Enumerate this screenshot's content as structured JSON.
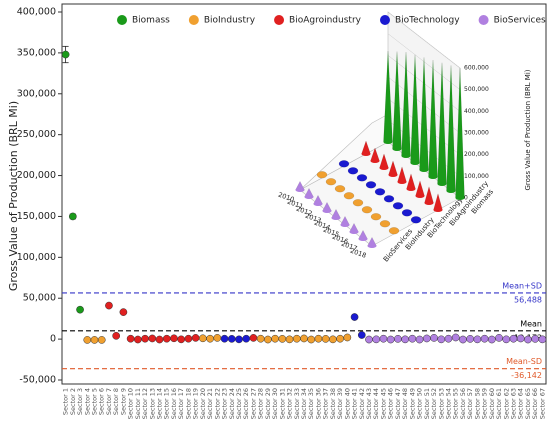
{
  "chart_data": [
    {
      "type": "scatter-errorbar",
      "ylabel": "Gross Value of Production (BRL Mi)",
      "categories": [
        "Sector 1",
        "Sector 2",
        "Sector 3",
        "Sector 4",
        "Sector 5",
        "Sector 6",
        "Sector 7",
        "Sector 8",
        "Sector 9",
        "Sector 10",
        "Sector 11",
        "Sector 12",
        "Sector 13",
        "Sector 14",
        "Sector 15",
        "Sector 16",
        "Sector 17",
        "Sector 18",
        "Sector 19",
        "Sector 20",
        "Sector 21",
        "Sector 22",
        "Sector 23",
        "Sector 24",
        "Sector 25",
        "Sector 26",
        "Sector 27",
        "Sector 28",
        "Sector 29",
        "Sector 30",
        "Sector 31",
        "Sector 32",
        "Sector 33",
        "Sector 34",
        "Sector 35",
        "Sector 36",
        "Sector 37",
        "Sector 38",
        "Sector 39",
        "Sector 40",
        "Sector 41",
        "Sector 42",
        "Sector 43",
        "Sector 44",
        "Sector 45",
        "Sector 46",
        "Sector 47",
        "Sector 48",
        "Sector 49",
        "Sector 50",
        "Sector 51",
        "Sector 52",
        "Sector 53",
        "Sector 54",
        "Sector 55",
        "Sector 56",
        "Sector 57",
        "Sector 58",
        "Sector 59",
        "Sector 60",
        "Sector 61",
        "Sector 62",
        "Sector 63",
        "Sector 64",
        "Sector 65",
        "Sector 66",
        "Sector 67"
      ],
      "values": [
        348000,
        150000,
        36000,
        -1000,
        -1000,
        -1000,
        41000,
        4000,
        33000,
        500,
        -500,
        500,
        800,
        -500,
        500,
        1000,
        -300,
        500,
        1500,
        1000,
        500,
        1500,
        500,
        300,
        -300,
        500,
        1500,
        500,
        -500,
        500,
        300,
        -300,
        500,
        800,
        -500,
        500,
        300,
        -300,
        500,
        2000,
        27000,
        5000,
        -500,
        -300,
        500,
        -500,
        300,
        -300,
        500,
        -500,
        800,
        1500,
        -300,
        500,
        2000,
        -500,
        300,
        -300,
        500,
        -500,
        1500,
        -300,
        500,
        800,
        -500,
        300,
        -300
      ],
      "errors": [
        10000,
        3000,
        2500,
        1500,
        1500,
        1500,
        1500,
        1500,
        1500,
        1500,
        1500,
        1500,
        1500,
        1500,
        1500,
        1500,
        1500,
        1500,
        1500,
        1500,
        1500,
        1500,
        1500,
        1500,
        1500,
        1500,
        1500,
        1500,
        1500,
        1500,
        1500,
        1500,
        1500,
        1500,
        1500,
        1500,
        1500,
        1500,
        1500,
        1500,
        2500,
        1500,
        1500,
        1500,
        1500,
        1500,
        1500,
        1500,
        1500,
        1500,
        1500,
        1500,
        1500,
        1500,
        1500,
        1500,
        1500,
        1500,
        1500,
        1500,
        1500,
        1500,
        1500,
        1500,
        1500,
        1500,
        1500
      ],
      "colors": [
        "#1a9a1a",
        "#1a9a1a",
        "#1a9a1a",
        "#f0a030",
        "#f0a030",
        "#f0a030",
        "#e02020",
        "#e02020",
        "#e02020",
        "#e02020",
        "#e02020",
        "#e02020",
        "#e02020",
        "#e02020",
        "#e02020",
        "#e02020",
        "#e02020",
        "#e02020",
        "#e02020",
        "#f0a030",
        "#f0a030",
        "#f0a030",
        "#1a1ad0",
        "#1a1ad0",
        "#1a1ad0",
        "#1a1ad0",
        "#e02020",
        "#f0a030",
        "#f0a030",
        "#f0a030",
        "#f0a030",
        "#f0a030",
        "#f0a030",
        "#f0a030",
        "#f0a030",
        "#f0a030",
        "#f0a030",
        "#f0a030",
        "#f0a030",
        "#f0a030",
        "#1a1ad0",
        "#1a1ad0",
        "#b080e0",
        "#b080e0",
        "#b080e0",
        "#b080e0",
        "#b080e0",
        "#b080e0",
        "#b080e0",
        "#b080e0",
        "#b080e0",
        "#b080e0",
        "#b080e0",
        "#b080e0",
        "#b080e0",
        "#b080e0",
        "#b080e0",
        "#b080e0",
        "#b080e0",
        "#b080e0",
        "#b080e0",
        "#b080e0",
        "#b080e0",
        "#b080e0",
        "#b080e0",
        "#b080e0",
        "#b080e0"
      ],
      "legend": [
        {
          "name": "Biomass",
          "color": "#1a9a1a"
        },
        {
          "name": "BioIndustry",
          "color": "#f0a030"
        },
        {
          "name": "BioAgroindustry",
          "color": "#e02020"
        },
        {
          "name": "BioTechnology",
          "color": "#1a1ad0"
        },
        {
          "name": "BioServices",
          "color": "#b080e0"
        }
      ],
      "ylim": [
        -50000,
        400000
      ],
      "yticks": [
        {
          "value": -50000,
          "label": "-50,000"
        },
        0,
        {
          "value": 50000,
          "label": "50,000"
        },
        {
          "value": 100000,
          "label": "100,000"
        },
        {
          "value": 150000,
          "label": "150,000"
        },
        {
          "value": 200000,
          "label": "200,000"
        },
        {
          "value": 250000,
          "label": "250,000"
        },
        {
          "value": 300000,
          "label": "300,000"
        },
        {
          "value": 350000,
          "label": "350,000"
        },
        {
          "value": 400000,
          "label": "400,000"
        }
      ],
      "reference_lines": [
        {
          "name": "Mean+SD",
          "value": 56488,
          "label": "56,488",
          "color": "#3535c8"
        },
        {
          "name": "Mean",
          "value": 10173,
          "label": "10,173",
          "color": "#000000"
        },
        {
          "name": "Mean-SD",
          "value": -36142,
          "label": "-36,142",
          "color": "#e05a2a"
        }
      ]
    },
    {
      "type": "cone3d",
      "zlabel": "Gross Value of Production (BRL Mi)",
      "years": [
        2010,
        2011,
        2012,
        2013,
        2014,
        2015,
        2016,
        2017,
        2018
      ],
      "series": [
        {
          "name": "BioServices",
          "color": "#b080e0",
          "values": [
            40000,
            40000,
            40000,
            40000,
            40000,
            40000,
            40000,
            40000,
            40000
          ]
        },
        {
          "name": "BioIndustry",
          "color": "#f0a030",
          "values": [
            15000,
            15000,
            15000,
            15000,
            15000,
            15000,
            15000,
            15000,
            15000
          ]
        },
        {
          "name": "BioTechnology",
          "color": "#1a1ad0",
          "values": [
            10000,
            10000,
            10000,
            10000,
            10000,
            10000,
            10000,
            10000,
            10000
          ]
        },
        {
          "name": "BioAgroindustry",
          "color": "#e02020",
          "values": [
            60000,
            60000,
            65000,
            65000,
            70000,
            70000,
            70000,
            75000,
            75000
          ]
        },
        {
          "name": "Biomass",
          "color": "#1a9a1a",
          "values": [
            420000,
            450000,
            480000,
            500000,
            520000,
            540000,
            560000,
            580000,
            600000
          ]
        }
      ],
      "zlim": [
        0,
        600000
      ],
      "zticks": [
        0,
        {
          "value": 100000,
          "label": "100,000"
        },
        {
          "value": 200000,
          "label": "200,000"
        },
        {
          "value": 300000,
          "label": "300,000"
        },
        {
          "value": 400000,
          "label": "400,000"
        },
        {
          "value": 500000,
          "label": "500,000"
        },
        {
          "value": 600000,
          "label": "600,000"
        }
      ]
    }
  ]
}
